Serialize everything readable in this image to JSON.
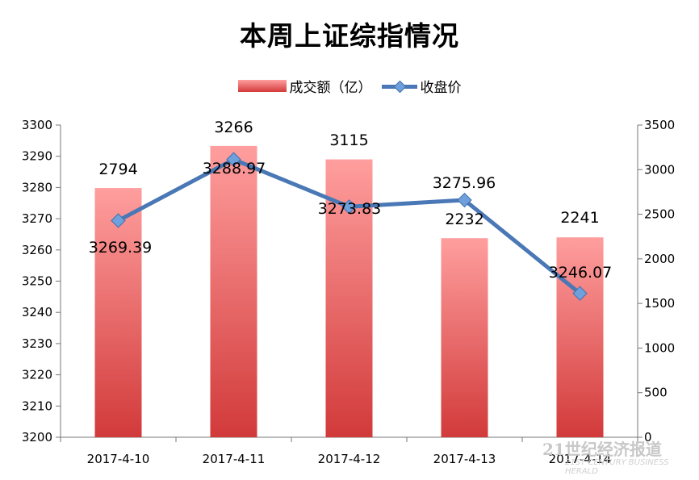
{
  "chart_data": {
    "type": "bar+line",
    "title": "本周上证综指情况",
    "categories": [
      "2017-4-10",
      "2017-4-11",
      "2017-4-12",
      "2017-4-13",
      "2017-4-14"
    ],
    "series": [
      {
        "name": "成交额（亿）",
        "type": "bar",
        "axis": "right",
        "values": [
          2794,
          3266,
          3115,
          2232,
          2241
        ],
        "colors": {
          "top": "#ff9e9e",
          "bottom": "#d23a3a"
        }
      },
      {
        "name": "收盘价",
        "type": "line",
        "axis": "left",
        "values": [
          3269.39,
          3288.97,
          3273.83,
          3275.96,
          3246.07
        ],
        "color": "#4a78b6",
        "marker_color": "#6fa0dc"
      }
    ],
    "y_left": {
      "min": 3200,
      "max": 3300,
      "step": 10,
      "ticks": [
        "3200",
        "3210",
        "3220",
        "3230",
        "3240",
        "3250",
        "3260",
        "3270",
        "3280",
        "3290",
        "3300"
      ]
    },
    "y_right": {
      "min": 0,
      "max": 3500,
      "step": 500,
      "ticks": [
        "0",
        "500",
        "1000",
        "1500",
        "2000",
        "2500",
        "3000",
        "3500"
      ]
    },
    "legend_position": "top-center",
    "grid": false
  },
  "watermark": {
    "text": "21世纪经济报道",
    "subtext": "21ST CENTURY BUSINESS HERALD"
  }
}
